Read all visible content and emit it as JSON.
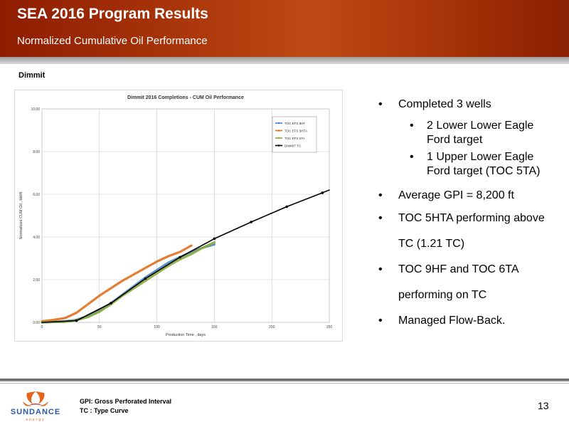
{
  "header": {
    "title": "SEA 2016 Program Results",
    "subtitle": "Normalized Cumulative Oil Performance"
  },
  "section_label": "Dimmit",
  "bullets": [
    {
      "text": "Completed 3 wells",
      "level": 1
    },
    {
      "text": "2 Lower Lower Eagle Ford target",
      "level": 2
    },
    {
      "text": "1 Upper Lower Eagle Ford target (TOC 5TA)",
      "level": 2
    },
    {
      "text": "Average GPI = 8,200 ft",
      "level": 1
    },
    {
      "text": "TOC 5HTA performing above TC (1.21 TC)",
      "level": 1
    },
    {
      "text": "TOC 9HF and TOC 6TA performing on TC",
      "level": 1
    },
    {
      "text": "Managed Flow-Back.",
      "level": 1
    }
  ],
  "footnotes": {
    "line1": "GPI: Gross Perforated Interval",
    "line2": "TC : Type Curve"
  },
  "page_number": "13",
  "logo": {
    "text": "SUNDANCE",
    "sub": "energy"
  },
  "colors": {
    "header": "#a8340a",
    "tc": "#000000",
    "toc9hf": "#4a86c8",
    "toc5hta": "#e0701f",
    "toc6ta": "#8aaa3a"
  },
  "chart_data": {
    "type": "line",
    "title": "Dimmit 2016 Completions - CUM Oil Performance",
    "xlabel": "Production Time , days",
    "ylabel": "Normalized CUM Oil , bbl/ft",
    "xlim": [
      0,
      250
    ],
    "ylim": [
      0,
      10
    ],
    "xticks": [
      0,
      50,
      100,
      150,
      200,
      250
    ],
    "yticks": [
      "0.00",
      "2.00",
      "4.00",
      "6.00",
      "8.00",
      "10.00"
    ],
    "grid": true,
    "legend_position": "top-right",
    "series": [
      {
        "name": "TOC EFS 9HF",
        "color": "#4a86c8",
        "x": [
          0,
          20,
          30,
          40,
          50,
          60,
          70,
          80,
          90,
          100,
          110,
          120,
          130,
          140,
          150
        ],
        "y": [
          0.0,
          0.05,
          0.12,
          0.3,
          0.55,
          0.9,
          1.3,
          1.7,
          2.1,
          2.45,
          2.8,
          3.05,
          3.3,
          3.5,
          3.65
        ]
      },
      {
        "name": "TOC EFS 5HTA",
        "color": "#e0701f",
        "x": [
          0,
          10,
          20,
          30,
          40,
          50,
          60,
          70,
          80,
          90,
          100,
          110,
          120,
          130
        ],
        "y": [
          0.05,
          0.12,
          0.2,
          0.45,
          0.85,
          1.25,
          1.6,
          1.95,
          2.25,
          2.55,
          2.85,
          3.1,
          3.3,
          3.6
        ]
      },
      {
        "name": "TOC EFS 6TA",
        "color": "#8aaa3a",
        "x": [
          0,
          20,
          30,
          40,
          50,
          60,
          70,
          80,
          90,
          100,
          110,
          120,
          130,
          140,
          150
        ],
        "y": [
          0.0,
          0.03,
          0.1,
          0.25,
          0.5,
          0.85,
          1.25,
          1.6,
          1.95,
          2.3,
          2.65,
          2.95,
          3.2,
          3.5,
          3.75
        ]
      },
      {
        "name": "DIMMIT TC",
        "color": "#000000",
        "x": [
          0,
          30,
          60,
          90,
          120,
          150,
          182,
          213,
          244,
          250
        ],
        "y": [
          0.0,
          0.08,
          0.9,
          2.05,
          3.05,
          3.92,
          4.7,
          5.42,
          6.07,
          6.2
        ]
      }
    ]
  }
}
